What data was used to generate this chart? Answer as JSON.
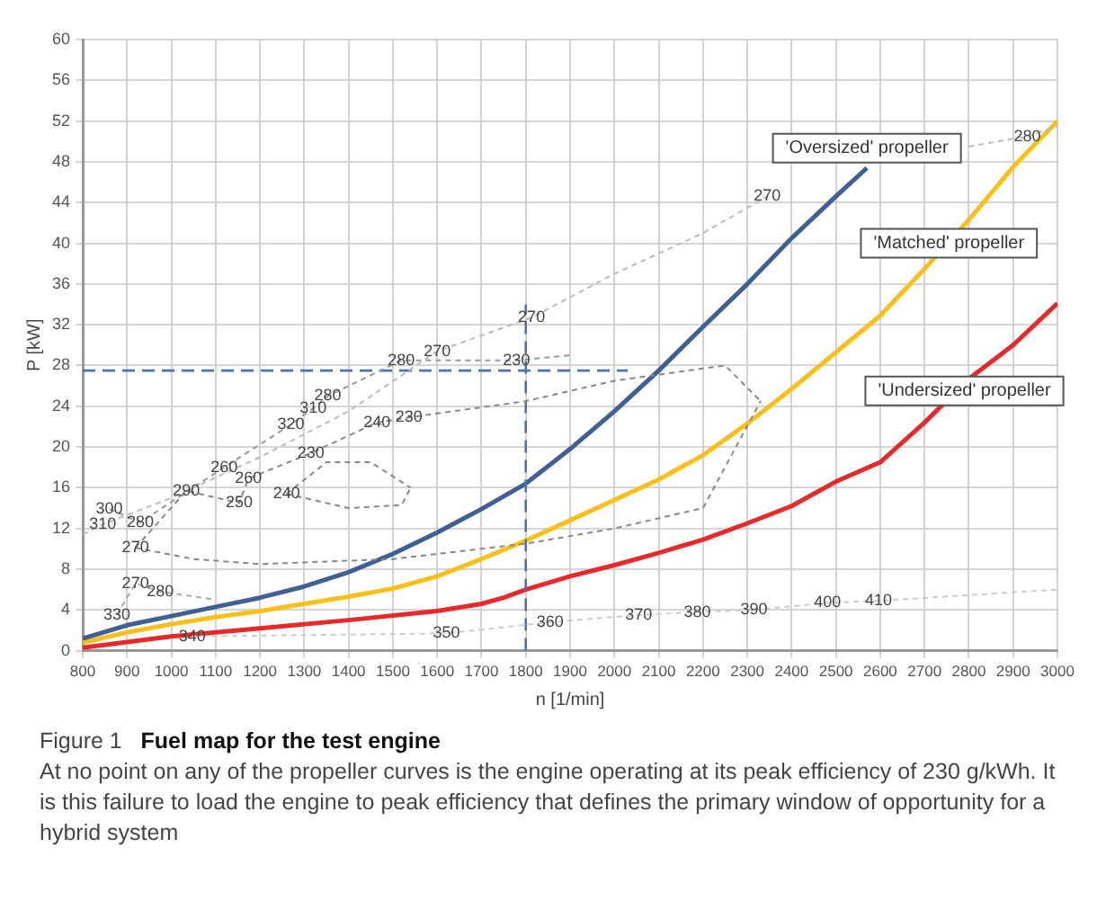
{
  "chart_data": {
    "type": "line",
    "title": "Fuel map for the test engine",
    "subtitle": "At no point on any of the propeller curves is the engine operating at its peak efficiency of 230 g/kWh. It is this failure to load the engine to peak efficiency that defines the primary window of opportunity for a hybrid system",
    "xlabel": "n [1/min]",
    "ylabel": "P [kW]",
    "xlim": [
      800,
      3000
    ],
    "xticks": [
      800,
      900,
      1000,
      1100,
      1200,
      1300,
      1400,
      1500,
      1600,
      1700,
      1800,
      1900,
      2000,
      2100,
      2200,
      2300,
      2400,
      2500,
      2600,
      2700,
      2800,
      2900,
      3000
    ],
    "ylim": [
      0,
      60
    ],
    "yticks": [
      0,
      4,
      8,
      12,
      16,
      20,
      24,
      28,
      32,
      36,
      40,
      44,
      48,
      52,
      56,
      60
    ],
    "grid": true,
    "legend": false,
    "marker": "none",
    "series": [
      {
        "color": "#bbbbbb",
        "line_style": "dotted",
        "x": [
          800,
          845,
          1000,
          1200,
          1400,
          1600,
          1813,
          2000,
          2200,
          2345,
          2600,
          2800,
          2932,
          3000
        ],
        "values": [
          11.4,
          12.4,
          15,
          19,
          23.5,
          29.4,
          32.7,
          37,
          41,
          44.6,
          null,
          49.5,
          50.5,
          51.5
        ]
      },
      {
        "color": "#999999",
        "line_style": "dotted",
        "x": [
          860,
          930,
          1119,
          1270,
          1320,
          1353,
          1519,
          1779,
          1900
        ],
        "values": [
          13.9,
          12.6,
          18,
          22.2,
          23.8,
          25,
          28.5,
          28.5,
          29
        ]
      },
      {
        "color": "#888888",
        "line_style": "dotted",
        "x": [
          919,
          1034,
          1153,
          1174,
          1315,
          1464,
          1536,
          1800,
          2000,
          2250,
          2330
        ],
        "values": [
          10.1,
          15.7,
          14.5,
          16.9,
          19.4,
          22.4,
          22.9,
          24.5,
          26.5,
          28,
          24.5
        ]
      },
      {
        "color": "#888888",
        "line_style": "dotted",
        "x": [
          919,
          1050,
          1200,
          1500,
          1800,
          2000,
          2200,
          2330
        ],
        "values": [
          10.1,
          9,
          8.5,
          9,
          10.5,
          12,
          14,
          24.5
        ]
      },
      {
        "color": "#888888",
        "line_style": "dotted",
        "x": [
          1260,
          1350,
          1450,
          1540
        ],
        "values": [
          15.4,
          18.5,
          18.5,
          16
        ]
      },
      {
        "color": "#888888",
        "line_style": "dotted",
        "x": [
          1260,
          1400,
          1520,
          1540
        ],
        "values": [
          15.4,
          14,
          14.3,
          16
        ]
      },
      {
        "color": "#aaaaaa",
        "line_style": "dotted",
        "x": [
          877,
          919,
          975,
          1100
        ],
        "values": [
          3.5,
          6.6,
          5.8,
          5
        ]
      },
      {
        "color": "#cccccc",
        "line_style": "dotted",
        "x": [
          1047,
          1621,
          1855,
          2055,
          2187,
          2315,
          2481,
          2596,
          3000
        ],
        "values": [
          1.4,
          1.7,
          2.8,
          3.5,
          3.8,
          4,
          4.7,
          4.9,
          6
        ]
      },
      {
        "color": "#4a72b0",
        "line_style": "dashed",
        "x": [
          1800,
          1800
        ],
        "values": [
          0,
          34
        ]
      },
      {
        "color": "#4a72b0",
        "line_style": "dashed",
        "x": [
          800,
          2030
        ],
        "values": [
          27.5,
          27.5
        ]
      },
      {
        "color": "#3f5f95",
        "line_style": "solid",
        "x": [
          800,
          900,
          1000,
          1100,
          1200,
          1300,
          1400,
          1500,
          1600,
          1700,
          1800,
          1900,
          2000,
          2100,
          2200,
          2300,
          2400,
          2500,
          2570
        ],
        "values": [
          1.2,
          2.5,
          3.4,
          4.3,
          5.2,
          6.3,
          7.7,
          9.5,
          11.6,
          13.9,
          16.4,
          19.8,
          23.5,
          27.5,
          31.8,
          36,
          40.5,
          44.6,
          47.4
        ]
      },
      {
        "color": "#fbbf1a",
        "line_style": "solid",
        "x": [
          800,
          900,
          1000,
          1100,
          1200,
          1300,
          1400,
          1500,
          1600,
          1700,
          1800,
          1900,
          2000,
          2100,
          2200,
          2300,
          2400,
          2500,
          2600,
          2700,
          2800,
          2900,
          3000
        ],
        "values": [
          0.8,
          1.8,
          2.6,
          3.3,
          3.9,
          4.6,
          5.3,
          6.1,
          7.3,
          9,
          10.8,
          12.8,
          14.8,
          16.8,
          19.2,
          22.3,
          25.7,
          29.3,
          32.9,
          37.5,
          42.3,
          47.5,
          52
        ]
      },
      {
        "color": "#e8282a",
        "line_style": "solid",
        "x": [
          800,
          1000,
          1200,
          1400,
          1600,
          1700,
          1750,
          1800,
          1900,
          2000,
          2100,
          2200,
          2300,
          2400,
          2500,
          2600,
          2700,
          2800,
          2900,
          3000
        ],
        "values": [
          0.3,
          1.4,
          2.2,
          3,
          3.9,
          4.6,
          5.2,
          6,
          7.3,
          8.4,
          9.6,
          10.9,
          12.5,
          14.2,
          16.6,
          18.5,
          22.4,
          26.7,
          30,
          34.1
        ]
      }
    ],
    "annotations": [
      "Figure 1",
      {
        "text": "'Oversized' propeller",
        "x": 2570,
        "y": 47.4
      },
      {
        "text": "'Matched' propeller",
        "x": 2755,
        "y": 40
      },
      {
        "text": "'Undersized' propeller",
        "x": 2790,
        "y": 25.5
      },
      {
        "text": "270",
        "x": 1813,
        "y": 32.7
      },
      {
        "text": "270",
        "x": 1600,
        "y": 29.4
      },
      {
        "text": "280",
        "x": 1519,
        "y": 28.5
      },
      {
        "text": "230",
        "x": 1779,
        "y": 28.5
      },
      {
        "text": "280",
        "x": 1353,
        "y": 25
      },
      {
        "text": "320",
        "x": 1270,
        "y": 22.2
      },
      {
        "text": "310",
        "x": 1320,
        "y": 23.8
      },
      {
        "text": "240",
        "x": 1464,
        "y": 22.4
      },
      {
        "text": "230",
        "x": 1536,
        "y": 22.9
      },
      {
        "text": "230",
        "x": 1315,
        "y": 19.4
      },
      {
        "text": "260",
        "x": 1119,
        "y": 18
      },
      {
        "text": "260",
        "x": 1174,
        "y": 16.9
      },
      {
        "text": "290",
        "x": 1034,
        "y": 15.7
      },
      {
        "text": "250",
        "x": 1153,
        "y": 14.5
      },
      {
        "text": "240",
        "x": 1260,
        "y": 15.4
      },
      {
        "text": "310",
        "x": 845,
        "y": 12.4
      },
      {
        "text": "300",
        "x": 860,
        "y": 13.9
      },
      {
        "text": "280",
        "x": 930,
        "y": 12.6
      },
      {
        "text": "270",
        "x": 919,
        "y": 10.1
      },
      {
        "text": "270",
        "x": 919,
        "y": 6.6
      },
      {
        "text": "280",
        "x": 975,
        "y": 5.8
      },
      {
        "text": "330",
        "x": 877,
        "y": 3.5
      },
      {
        "text": "340",
        "x": 1047,
        "y": 1.4
      },
      {
        "text": "350",
        "x": 1621,
        "y": 1.7
      },
      {
        "text": "360",
        "x": 1855,
        "y": 2.8
      },
      {
        "text": "370",
        "x": 2055,
        "y": 3.5
      },
      {
        "text": "380",
        "x": 2187,
        "y": 3.8
      },
      {
        "text": "390",
        "x": 2315,
        "y": 4
      },
      {
        "text": "400",
        "x": 2481,
        "y": 4.7
      },
      {
        "text": "410",
        "x": 2596,
        "y": 4.9
      },
      {
        "text": "270",
        "x": 2345,
        "y": 44.6
      },
      {
        "text": "280",
        "x": 2932,
        "y": 50.5
      }
    ]
  }
}
